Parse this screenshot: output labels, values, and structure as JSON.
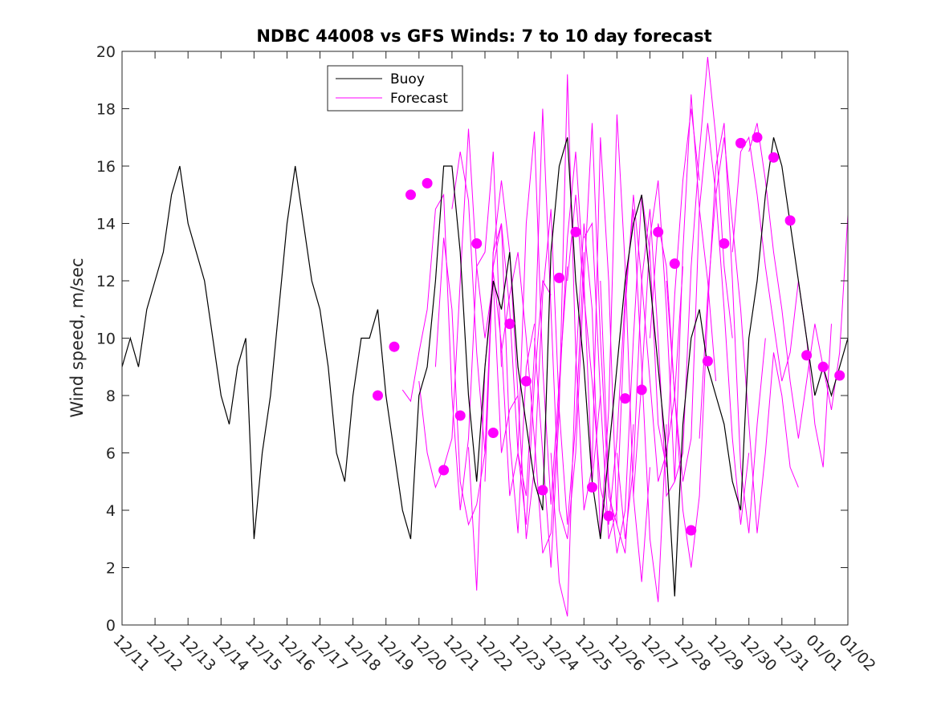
{
  "chart_data": {
    "type": "line",
    "title": "NDBC 44008 vs GFS Winds: 7 to 10 day forecast",
    "xlabel": "",
    "ylabel": "Wind speed, m/sec",
    "xlim": [
      0,
      22
    ],
    "ylim": [
      0,
      20
    ],
    "yticks": [
      0,
      2,
      4,
      6,
      8,
      10,
      12,
      14,
      16,
      18,
      20
    ],
    "xticks": [
      0,
      1,
      2,
      3,
      4,
      5,
      6,
      7,
      8,
      9,
      10,
      11,
      12,
      13,
      14,
      15,
      16,
      17,
      18,
      19,
      20,
      21,
      22
    ],
    "xtick_labels": [
      "12/11",
      "12/12",
      "12/13",
      "12/14",
      "12/15",
      "12/16",
      "12/17",
      "12/18",
      "12/19",
      "12/20",
      "12/21",
      "12/22",
      "12/23",
      "12/24",
      "12/25",
      "12/26",
      "12/27",
      "12/28",
      "12/29",
      "12/30",
      "12/31",
      "01/01",
      "01/02"
    ],
    "legend": {
      "position": "top-left",
      "entries": [
        "Buoy",
        "Forecast"
      ]
    },
    "colors": {
      "buoy": "#000000",
      "forecast": "#ff00ff"
    },
    "buoy": {
      "name": "Buoy",
      "x": [
        0,
        0.25,
        0.5,
        0.75,
        1,
        1.25,
        1.5,
        1.75,
        2,
        2.25,
        2.5,
        2.75,
        3,
        3.25,
        3.5,
        3.75,
        4,
        4.25,
        4.5,
        4.75,
        5,
        5.25,
        5.5,
        5.75,
        6,
        6.25,
        6.5,
        6.75,
        7,
        7.25,
        7.5,
        7.75,
        8,
        8.25,
        8.5,
        8.75,
        9,
        9.25,
        9.5,
        9.75,
        10,
        10.25,
        10.5,
        10.75,
        11,
        11.25,
        11.5,
        11.75,
        12,
        12.25,
        12.5,
        12.75,
        13,
        13.25,
        13.5,
        13.75,
        14,
        14.25,
        14.5,
        14.75,
        15,
        15.25,
        15.5,
        15.75,
        16,
        16.25,
        16.5,
        16.75,
        17,
        17.25,
        17.5,
        17.75,
        18,
        18.25,
        18.5,
        18.75,
        19,
        19.25,
        19.5,
        19.75,
        20,
        20.25,
        20.5,
        20.75,
        21,
        21.25,
        21.5,
        21.75,
        22
      ],
      "values": [
        9,
        10,
        9,
        11,
        12,
        13,
        15,
        16,
        14,
        13,
        12,
        10,
        8,
        7,
        9,
        10,
        3,
        6,
        8,
        11,
        14,
        16,
        14,
        12,
        11,
        9,
        6,
        5,
        8,
        10,
        10,
        11,
        8,
        6,
        4,
        3,
        8,
        9,
        12,
        16,
        16,
        13,
        8,
        5,
        9,
        12,
        11,
        13,
        9,
        7,
        5,
        4,
        13,
        16,
        17,
        12,
        9,
        5,
        3,
        6,
        9,
        12,
        14,
        15,
        12,
        9,
        6,
        1,
        7,
        10,
        11,
        9,
        8,
        7,
        5,
        4,
        10,
        12,
        15,
        17,
        16,
        14,
        12,
        10,
        8,
        9,
        8,
        9,
        10
      ]
    },
    "forecast_points": {
      "name": "Forecast",
      "x": [
        7.75,
        8.25,
        8.75,
        9.25,
        9.75,
        10.25,
        10.75,
        11.25,
        11.75,
        12.25,
        12.75,
        13.25,
        13.75,
        14.25,
        14.75,
        15.25,
        15.75,
        16.25,
        16.75,
        17.25,
        17.75,
        18.25,
        18.75,
        19.25,
        19.75,
        20.25,
        20.75,
        21.25,
        21.75
      ],
      "values": [
        8.0,
        9.7,
        15.0,
        15.4,
        5.4,
        7.3,
        13.3,
        6.7,
        10.5,
        8.5,
        4.7,
        12.1,
        13.7,
        4.8,
        3.8,
        7.9,
        8.2,
        13.7,
        12.6,
        3.3,
        9.2,
        13.3,
        16.8,
        17.0,
        16.3,
        14.1,
        9.4,
        9.0,
        8.7
      ]
    },
    "forecast_runs": [
      {
        "start": 8.5,
        "values": [
          8.2,
          7.8,
          9.5,
          11.0,
          14.5,
          15.0,
          8.0,
          4.0,
          6.5,
          12.5,
          13.0,
          16.5,
          9.0
        ]
      },
      {
        "start": 9.0,
        "values": [
          8.5,
          6.0,
          4.8,
          5.5,
          6.5,
          12.0,
          17.3,
          12.5,
          10.0,
          12.0,
          6.0,
          7.5,
          8.0
        ]
      },
      {
        "start": 9.5,
        "values": [
          9.0,
          13.5,
          11.0,
          5.0,
          3.5,
          4.2,
          6.0,
          12.5,
          14.0,
          6.5,
          3.2,
          9.0,
          10.5
        ]
      },
      {
        "start": 10.0,
        "values": [
          14.5,
          16.5,
          14.8,
          9.5,
          6.0,
          13.0,
          14.0,
          11.0,
          6.0,
          3.5,
          8.5,
          12.0,
          11.5
        ]
      },
      {
        "start": 10.5,
        "values": [
          6.2,
          1.2,
          9.0,
          12.3,
          9.8,
          4.5,
          6.0,
          14.0,
          17.2,
          9.0,
          4.2,
          8.5,
          12.5
        ]
      },
      {
        "start": 11.0,
        "values": [
          5.0,
          13.0,
          15.5,
          13.0,
          8.0,
          3.0,
          5.5,
          11.5,
          14.5,
          7.5,
          3.5,
          7.0,
          13.0
        ]
      },
      {
        "start": 11.5,
        "values": [
          9.5,
          11.5,
          13.0,
          10.0,
          6.5,
          2.5,
          3.2,
          8.0,
          13.5,
          16.5,
          12.0,
          5.0,
          8.0
        ]
      },
      {
        "start": 12.0,
        "values": [
          6.0,
          4.5,
          9.5,
          18.0,
          11.0,
          4.0,
          3.0,
          6.0,
          12.0,
          17.5,
          10.0,
          4.5,
          3.5
        ]
      },
      {
        "start": 12.5,
        "values": [
          10.0,
          6.0,
          2.0,
          7.5,
          19.2,
          9.5,
          4.0,
          5.5,
          17.0,
          12.0,
          3.5,
          2.5,
          7.0
        ]
      },
      {
        "start": 13.0,
        "values": [
          6.0,
          1.5,
          0.3,
          9.0,
          14.0,
          11.0,
          3.0,
          7.5,
          17.8,
          12.5,
          4.5,
          1.5,
          5.5
        ]
      },
      {
        "start": 13.5,
        "values": [
          12.0,
          15.0,
          11.5,
          8.5,
          4.8,
          3.5,
          6.5,
          11.5,
          14.5,
          9.0,
          3.0,
          0.8,
          7.0
        ]
      },
      {
        "start": 14.0,
        "values": [
          13.5,
          14.0,
          8.0,
          3.0,
          4.0,
          11.0,
          15.0,
          12.0,
          8.5,
          5.0,
          6.0,
          8.0,
          12.5
        ]
      },
      {
        "start": 14.5,
        "values": [
          12.0,
          5.0,
          2.5,
          4.0,
          10.0,
          15.0,
          13.0,
          7.0,
          5.5,
          11.5,
          15.5,
          18.0,
          15.5
        ]
      },
      {
        "start": 15.0,
        "values": [
          6.0,
          3.0,
          5.5,
          12.0,
          14.5,
          10.0,
          4.5,
          5.0,
          13.0,
          18.5,
          14.5,
          12.0,
          8.5
        ]
      },
      {
        "start": 15.5,
        "values": [
          4.5,
          8.5,
          13.5,
          15.5,
          11.0,
          5.0,
          6.0,
          12.5,
          16.5,
          19.8,
          17.0,
          12.5,
          10.0
        ]
      },
      {
        "start": 16.0,
        "values": [
          10.0,
          14.0,
          12.5,
          8.0,
          5.0,
          6.5,
          14.5,
          17.5,
          15.0,
          11.0,
          6.5,
          3.5,
          6.0
        ]
      },
      {
        "start": 16.5,
        "values": [
          12.0,
          8.0,
          4.0,
          2.0,
          4.5,
          11.0,
          16.0,
          17.5,
          12.0,
          5.5,
          3.2,
          7.0,
          10.0
        ]
      },
      {
        "start": 17.5,
        "values": [
          6.5,
          11.5,
          15.0,
          17.0,
          14.0,
          11.0,
          7.0,
          3.2,
          6.0,
          9.5,
          8.0,
          5.5,
          4.8
        ]
      },
      {
        "start": 18.5,
        "values": [
          13.0,
          16.5,
          17.0,
          15.0,
          12.5,
          10.5,
          8.5,
          9.5,
          12.0,
          10.0,
          7.0,
          5.5,
          10.5
        ]
      },
      {
        "start": 19.0,
        "values": [
          16.5,
          17.5,
          15.5,
          13.0,
          11.0,
          8.5,
          6.5,
          8.5,
          10.5,
          9.0,
          7.5,
          9.5,
          14.3
        ]
      }
    ]
  }
}
